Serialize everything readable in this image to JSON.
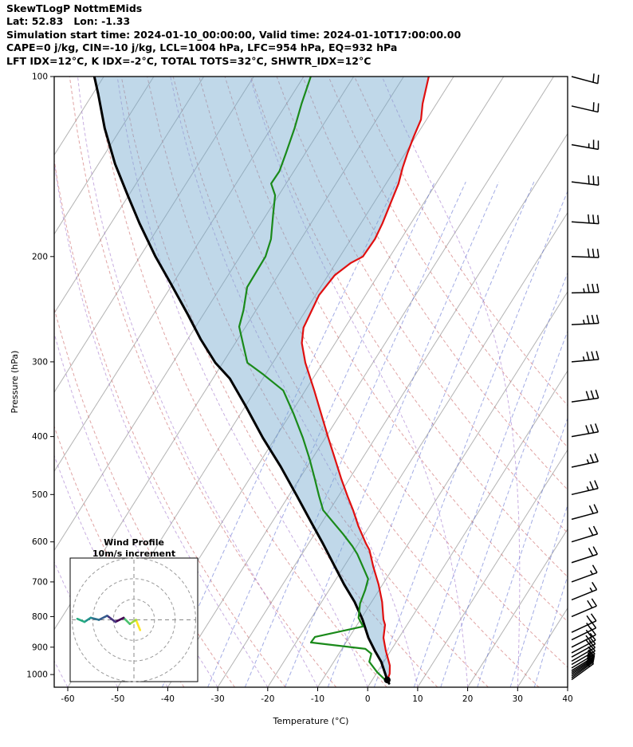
{
  "header": {
    "title": "SkewTLogP NottmEMids",
    "location_line": "Lat: 52.83   Lon: -1.33",
    "time_line": "Simulation start time: 2024-01-10_00:00:00, Valid time: 2024-01-10T17:00:00.00",
    "indices_line1": "CAPE=0 j/kg, CIN=-10 j/kg, LCL=1004 hPa, LFC=954 hPa, EQ=932 hPa",
    "indices_line2": "LFT IDX=12°C, K IDX=-2°C, TOTAL TOTS=32°C, SHWTR_IDX=12°C"
  },
  "axes": {
    "xlabel": "Temperature (°C)",
    "ylabel": "Pressure (hPa)",
    "x_ticks": [
      -60,
      -50,
      -40,
      -30,
      -20,
      -10,
      0,
      10,
      20,
      30,
      40
    ],
    "y_ticks": [
      100,
      200,
      300,
      400,
      500,
      600,
      700,
      800,
      900,
      1000
    ],
    "x_range": [
      -60,
      40
    ],
    "p_range": [
      100,
      1050
    ]
  },
  "chart_data": {
    "type": "line",
    "title": "SkewTLogP NottmEMids",
    "projection": "skew-T log-p",
    "xlabel": "Temperature (°C)",
    "ylabel": "Pressure (hPa)",
    "series": [
      {
        "name": "temperature",
        "color": "#e01010",
        "units": "[hPa, °C]",
        "points": [
          [
            1021,
            3.0
          ],
          [
            997,
            2.7
          ],
          [
            966,
            1.7
          ],
          [
            912,
            -1.0
          ],
          [
            868,
            -3.1
          ],
          [
            826,
            -4.4
          ],
          [
            809,
            -5.4
          ],
          [
            756,
            -7.9
          ],
          [
            707,
            -10.8
          ],
          [
            659,
            -14.2
          ],
          [
            619,
            -17.0
          ],
          [
            604,
            -18.5
          ],
          [
            565,
            -22.2
          ],
          [
            531,
            -25.3
          ],
          [
            503,
            -28.2
          ],
          [
            470,
            -31.7
          ],
          [
            435,
            -35.5
          ],
          [
            402,
            -39.4
          ],
          [
            367,
            -43.8
          ],
          [
            335,
            -48.2
          ],
          [
            301,
            -53.5
          ],
          [
            279,
            -56.7
          ],
          [
            263,
            -58.3
          ],
          [
            250,
            -58.7
          ],
          [
            232,
            -59.3
          ],
          [
            215,
            -58.7
          ],
          [
            205,
            -57.0
          ],
          [
            200,
            -55.4
          ],
          [
            187,
            -55.2
          ],
          [
            176,
            -55.7
          ],
          [
            163,
            -56.6
          ],
          [
            151,
            -57.5
          ],
          [
            142,
            -58.7
          ],
          [
            134,
            -59.6
          ],
          [
            126,
            -60.4
          ],
          [
            118,
            -61.1
          ],
          [
            111,
            -62.8
          ],
          [
            100,
            -65.0
          ]
        ]
      },
      {
        "name": "dewpoint",
        "color": "#1a8a1a",
        "units": "[hPa, °C]",
        "points": [
          [
            1021,
            2.6
          ],
          [
            991,
            0.0
          ],
          [
            952,
            -2.9
          ],
          [
            923,
            -3.5
          ],
          [
            906,
            -5.3
          ],
          [
            884,
            -17.0
          ],
          [
            865,
            -16.9
          ],
          [
            831,
            -8.6
          ],
          [
            804,
            -10.6
          ],
          [
            761,
            -12.1
          ],
          [
            722,
            -12.8
          ],
          [
            692,
            -13.6
          ],
          [
            659,
            -16.3
          ],
          [
            629,
            -18.9
          ],
          [
            610,
            -20.9
          ],
          [
            582,
            -24.3
          ],
          [
            556,
            -27.8
          ],
          [
            531,
            -31.3
          ],
          [
            503,
            -33.9
          ],
          [
            470,
            -37.0
          ],
          [
            435,
            -40.6
          ],
          [
            402,
            -44.5
          ],
          [
            367,
            -49.3
          ],
          [
            335,
            -54.4
          ],
          [
            315,
            -60.4
          ],
          [
            301,
            -65.1
          ],
          [
            279,
            -68.5
          ],
          [
            262,
            -71.3
          ],
          [
            246,
            -72.5
          ],
          [
            225,
            -74.7
          ],
          [
            212,
            -74.8
          ],
          [
            200,
            -74.9
          ],
          [
            187,
            -76.0
          ],
          [
            170,
            -78.7
          ],
          [
            158,
            -80.7
          ],
          [
            151,
            -83.0
          ],
          [
            144,
            -82.9
          ],
          [
            134,
            -83.9
          ],
          [
            122,
            -85.3
          ],
          [
            111,
            -87.0
          ],
          [
            100,
            -88.6
          ]
        ]
      },
      {
        "name": "parcel",
        "color": "#000000",
        "units": "[hPa, °C]",
        "points": [
          [
            1035,
            3.8
          ],
          [
            1021,
            3.0
          ],
          [
            952,
            -0.5
          ],
          [
            912,
            -3.2
          ],
          [
            868,
            -6.1
          ],
          [
            809,
            -9.6
          ],
          [
            756,
            -13.4
          ],
          [
            707,
            -17.7
          ],
          [
            659,
            -21.9
          ],
          [
            604,
            -27.1
          ],
          [
            556,
            -32.2
          ],
          [
            503,
            -38.3
          ],
          [
            449,
            -45.3
          ],
          [
            402,
            -52.5
          ],
          [
            356,
            -59.9
          ],
          [
            320,
            -66.6
          ],
          [
            301,
            -71.5
          ],
          [
            275,
            -77.4
          ],
          [
            250,
            -83.1
          ],
          [
            222,
            -90.4
          ],
          [
            200,
            -96.9
          ],
          [
            176,
            -104.3
          ],
          [
            158,
            -110.2
          ],
          [
            140,
            -116.7
          ],
          [
            122,
            -123.3
          ],
          [
            107,
            -128.9
          ],
          [
            100,
            -131.9
          ]
        ]
      }
    ],
    "background": {
      "isotherms": {
        "start": -130,
        "end": 40,
        "step": 10,
        "color": "#b3b3b3"
      },
      "dry_adiabats": {
        "start": -40,
        "end": 100,
        "step": 10,
        "color": "#cc6666"
      },
      "moist_adiabats": {
        "start": -60,
        "end": 30,
        "step": 10,
        "color": "#9b6bc9"
      },
      "mixing_ratio_g_kg": [
        0.1,
        0.25,
        0.5,
        1,
        2,
        4,
        7,
        10,
        16,
        24,
        32
      ],
      "mixing_color": "#5767cf"
    },
    "cape_shade_color": "#74a9cf",
    "surface_marker": {
      "p": 1021,
      "t": 3.0,
      "color": "#000000"
    },
    "wind_barbs_units": "[hPa, m/s, deg-from]",
    "wind_barbs": [
      [
        1020,
        13,
        234
      ],
      [
        1013,
        14,
        234
      ],
      [
        1006,
        14,
        235
      ],
      [
        999,
        15,
        236
      ],
      [
        992,
        15,
        237
      ],
      [
        985,
        16,
        238
      ],
      [
        975,
        16,
        239
      ],
      [
        962,
        17,
        240
      ],
      [
        950,
        17,
        240
      ],
      [
        935,
        18,
        241
      ],
      [
        920,
        18,
        242
      ],
      [
        900,
        19,
        243
      ],
      [
        875,
        19,
        244
      ],
      [
        850,
        20,
        245
      ],
      [
        800,
        18,
        247
      ],
      [
        750,
        17,
        248
      ],
      [
        700,
        16,
        250
      ],
      [
        650,
        18,
        252
      ],
      [
        600,
        20,
        253
      ],
      [
        550,
        22,
        255
      ],
      [
        500,
        24,
        257
      ],
      [
        450,
        26,
        258
      ],
      [
        400,
        28,
        260
      ],
      [
        350,
        31,
        262
      ],
      [
        300,
        34,
        265
      ],
      [
        260,
        36,
        267
      ],
      [
        230,
        34,
        269
      ],
      [
        200,
        32,
        272
      ],
      [
        175,
        30,
        274
      ],
      [
        150,
        28,
        277
      ],
      [
        130,
        25,
        280
      ],
      [
        112,
        22,
        283
      ],
      [
        100,
        20,
        285
      ]
    ],
    "hodograph": {
      "title_line1": "Wind Profile",
      "title_line2": "10m/s increment",
      "ring_increment_ms": 10,
      "rings": [
        10,
        20,
        30
      ],
      "trace_u": [
        3,
        1,
        -2,
        -5,
        -9,
        -13,
        -17,
        -21,
        -24,
        -27.5
      ],
      "trace_v": [
        -5,
        0,
        -2,
        1,
        -1,
        2,
        0,
        1,
        -1,
        0.5
      ],
      "segment_colors": [
        "#fde725",
        "#9fda3a",
        "#4ac16d",
        "#440154",
        "#46327e",
        "#365c8d",
        "#2c728e",
        "#21918c",
        "#27ad81"
      ]
    }
  }
}
